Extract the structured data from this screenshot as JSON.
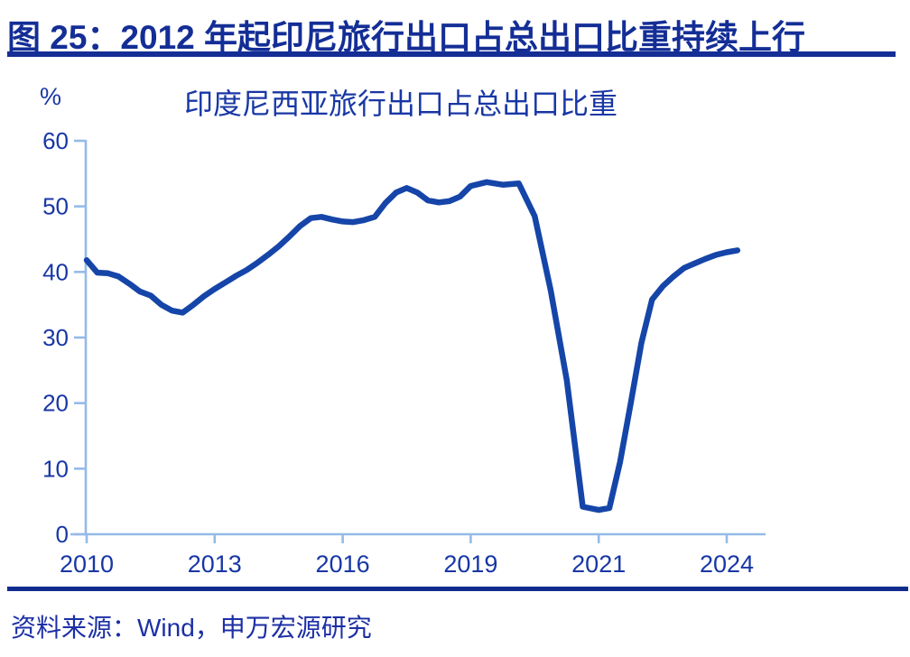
{
  "header": {
    "title": "图 25：2012 年起印尼旅行出口占总出口比重持续上行"
  },
  "footer": {
    "source": "资料来源：Wind，申万宏源研究"
  },
  "colors": {
    "title_navy": "#142E96",
    "rule_navy": "#0F2C8E",
    "label_blue": "#1837A5",
    "source_blue": "#1C2FA5",
    "line_blue": "#1545A8",
    "axis_light": "#95BAE7"
  },
  "chart_data": {
    "type": "line",
    "title": "印度尼西亚旅行出口占总出口比重",
    "unit_label": "%",
    "xlabel": "",
    "ylabel": "%",
    "ylim": [
      0,
      60
    ],
    "y_ticks": [
      0,
      10,
      20,
      30,
      40,
      50,
      60
    ],
    "x_ticks": [
      "2010",
      "2013",
      "2016",
      "2019",
      "2021",
      "2024"
    ],
    "grid": false,
    "legend_position": "none",
    "series": [
      {
        "name": "印度尼西亚旅行出口占总出口比重",
        "points": [
          [
            2010.0,
            41.8
          ],
          [
            2010.25,
            39.9
          ],
          [
            2010.5,
            39.8
          ],
          [
            2010.75,
            39.3
          ],
          [
            2011.0,
            38.2
          ],
          [
            2011.25,
            37.0
          ],
          [
            2011.5,
            36.4
          ],
          [
            2011.75,
            35.0
          ],
          [
            2012.0,
            34.1
          ],
          [
            2012.25,
            33.8
          ],
          [
            2012.5,
            35.0
          ],
          [
            2012.75,
            36.3
          ],
          [
            2013.0,
            37.4
          ],
          [
            2013.25,
            38.4
          ],
          [
            2013.5,
            39.4
          ],
          [
            2013.75,
            40.3
          ],
          [
            2014.0,
            41.4
          ],
          [
            2014.25,
            42.6
          ],
          [
            2014.5,
            43.9
          ],
          [
            2014.75,
            45.4
          ],
          [
            2015.0,
            47.0
          ],
          [
            2015.25,
            48.2
          ],
          [
            2015.5,
            48.4
          ],
          [
            2015.75,
            48.0
          ],
          [
            2016.0,
            47.7
          ],
          [
            2016.25,
            47.6
          ],
          [
            2016.5,
            47.9
          ],
          [
            2016.75,
            48.4
          ],
          [
            2017.0,
            50.5
          ],
          [
            2017.25,
            52.1
          ],
          [
            2017.5,
            52.8
          ],
          [
            2017.75,
            52.1
          ],
          [
            2018.0,
            50.9
          ],
          [
            2018.25,
            50.6
          ],
          [
            2018.5,
            50.8
          ],
          [
            2018.75,
            51.5
          ],
          [
            2019.0,
            53.1
          ],
          [
            2019.25,
            53.7
          ],
          [
            2019.5,
            53.3
          ],
          [
            2019.75,
            53.5
          ],
          [
            2020.0,
            48.5
          ],
          [
            2020.25,
            37.2
          ],
          [
            2020.5,
            23.5
          ],
          [
            2020.75,
            4.2
          ],
          [
            2021.0,
            3.7
          ],
          [
            2021.25,
            4.0
          ],
          [
            2021.5,
            11.0
          ],
          [
            2021.75,
            20.0
          ],
          [
            2022.0,
            29.2
          ],
          [
            2022.25,
            35.8
          ],
          [
            2022.5,
            37.8
          ],
          [
            2022.75,
            39.3
          ],
          [
            2023.0,
            40.6
          ],
          [
            2023.25,
            41.3
          ],
          [
            2023.5,
            42.0
          ],
          [
            2023.75,
            42.6
          ],
          [
            2024.0,
            43.0
          ],
          [
            2024.25,
            43.3
          ]
        ]
      }
    ]
  }
}
